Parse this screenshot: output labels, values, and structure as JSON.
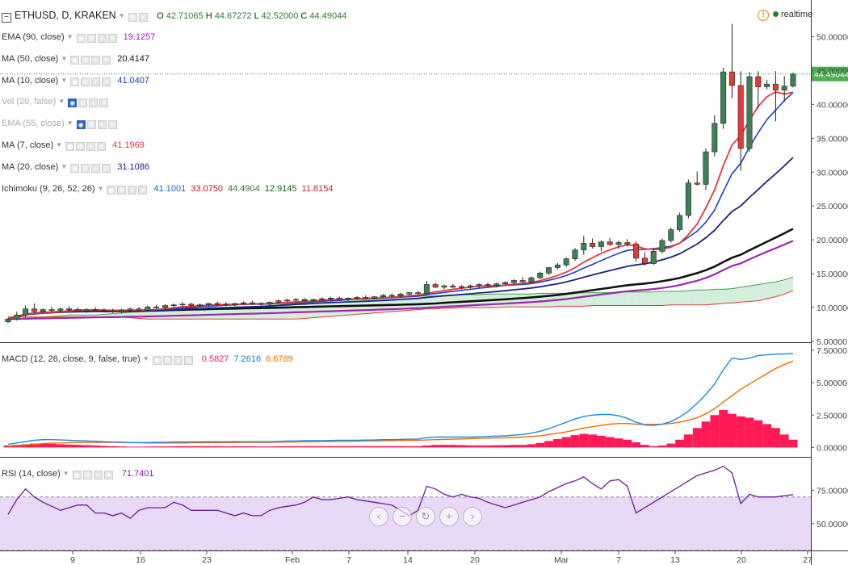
{
  "header": {
    "collapse_icon": "minus-square-icon",
    "symbol": "ETHUSD, D, KRAKEN",
    "ohlc": {
      "o_label": "O",
      "o": "42.71065",
      "h_label": "H",
      "h": "44.67272",
      "l_label": "L",
      "l": "42.52000",
      "c_label": "C",
      "c": "44.49044"
    },
    "realtime_label": "realtime",
    "colors": {
      "value": "#2e7d32",
      "warning": "#f57c00"
    }
  },
  "indicators": [
    {
      "label": "EMA (90, close)",
      "values": [
        "19.1257"
      ],
      "colors": [
        "#9c27b0"
      ],
      "faded": false
    },
    {
      "label": "MA (50, close)",
      "values": [
        "20.4147"
      ],
      "colors": [
        "#111111"
      ],
      "faded": false
    },
    {
      "label": "MA (10, close)",
      "values": [
        "41.0407"
      ],
      "colors": [
        "#1e3cc8"
      ],
      "faded": false
    },
    {
      "label": "Vol (20, false)",
      "values": [],
      "colors": [],
      "faded": true
    },
    {
      "label": "EMA (55, close)",
      "values": [],
      "colors": [],
      "faded": true
    },
    {
      "label": "MA (7, close)",
      "values": [
        "41.1969"
      ],
      "colors": [
        "#e53935"
      ],
      "faded": false
    },
    {
      "label": "MA (20, close)",
      "values": [
        "31.1086"
      ],
      "colors": [
        "#1a237e"
      ],
      "faded": false
    },
    {
      "label": "Ichimoku (9, 26, 52, 26)",
      "values": [
        "41.1001",
        "33.0750",
        "44.4904",
        "12.9145",
        "11.8154"
      ],
      "colors": [
        "#1565c0",
        "#b71c1c",
        "#2e7d32",
        "#1b5e20",
        "#c62828"
      ],
      "faded": false
    }
  ],
  "price_axis": {
    "ticks": [
      "50.00000",
      "45.00000",
      "40.00000",
      "35.00000",
      "30.00000",
      "25.00000",
      "20.00000",
      "15.00000",
      "10.00000",
      "5.00000"
    ],
    "last_price": "44.49044",
    "last_price_color": "#4caf50"
  },
  "macd": {
    "label": "MACD (12, 26, close, 9, false, true)",
    "values": [
      "0.5827",
      "7.2616",
      "6.6789"
    ],
    "colors": [
      "#e91e63",
      "#1976d2",
      "#ef6c00"
    ],
    "axis_ticks": [
      "7.50000",
      "5.00000",
      "2.50000",
      "0.00000"
    ]
  },
  "rsi": {
    "label": "RSI (14, close)",
    "value": "71.7401",
    "color": "#7b1fa2",
    "axis_ticks": [
      "75.00000",
      "50.00000"
    ]
  },
  "time_axis": {
    "labels": [
      "9",
      "16",
      "23",
      "Feb",
      "7",
      "14",
      "20",
      "Mar",
      "7",
      "13",
      "20",
      "27"
    ]
  },
  "navigation": [
    {
      "name": "scroll-left-button",
      "icon": "chevron-left-icon",
      "glyph": "‹"
    },
    {
      "name": "zoom-out-button",
      "icon": "minus-icon",
      "glyph": "−"
    },
    {
      "name": "reset-button",
      "icon": "reset-icon",
      "glyph": "↻"
    },
    {
      "name": "zoom-in-button",
      "icon": "plus-icon",
      "glyph": "+"
    },
    {
      "name": "scroll-right-button",
      "icon": "chevron-right-icon",
      "glyph": "›"
    }
  ],
  "chart_data": {
    "type": "candlestick",
    "price_candles": [
      [
        7.9,
        8.5,
        7.7,
        8.3
      ],
      [
        8.3,
        9.4,
        8.1,
        8.9
      ],
      [
        8.9,
        10.3,
        8.5,
        9.8
      ],
      [
        9.8,
        10.6,
        9.2,
        9.4
      ],
      [
        9.4,
        9.9,
        9.2,
        9.7
      ],
      [
        9.7,
        10.1,
        9.4,
        9.6
      ],
      [
        9.6,
        10.0,
        9.3,
        9.8
      ],
      [
        9.8,
        10.2,
        9.5,
        9.7
      ],
      [
        9.7,
        10.0,
        9.4,
        9.5
      ],
      [
        9.5,
        9.9,
        9.2,
        9.7
      ],
      [
        9.7,
        10.1,
        9.4,
        9.6
      ],
      [
        9.6,
        9.9,
        9.3,
        9.5
      ],
      [
        9.5,
        9.8,
        9.2,
        9.4
      ],
      [
        9.4,
        9.8,
        9.1,
        9.6
      ],
      [
        9.6,
        10.0,
        9.3,
        9.8
      ],
      [
        9.8,
        10.1,
        9.5,
        9.6
      ],
      [
        9.6,
        10.3,
        9.4,
        10.1
      ],
      [
        10.1,
        10.4,
        9.8,
        10.0
      ],
      [
        10.0,
        10.5,
        9.8,
        10.3
      ],
      [
        10.3,
        10.6,
        10.0,
        10.4
      ],
      [
        10.4,
        10.8,
        10.1,
        10.5
      ],
      [
        10.5,
        10.7,
        10.1,
        10.3
      ],
      [
        10.3,
        10.6,
        10.0,
        10.4
      ],
      [
        10.4,
        10.7,
        10.1,
        10.6
      ],
      [
        10.6,
        10.9,
        10.3,
        10.5
      ],
      [
        10.5,
        10.8,
        10.2,
        10.4
      ],
      [
        10.4,
        10.7,
        10.2,
        10.6
      ],
      [
        10.6,
        10.9,
        10.4,
        10.7
      ],
      [
        10.7,
        11.0,
        10.4,
        10.6
      ],
      [
        10.6,
        10.8,
        10.3,
        10.5
      ],
      [
        10.5,
        10.9,
        10.3,
        10.8
      ],
      [
        10.8,
        11.2,
        10.6,
        11.0
      ],
      [
        11.0,
        11.3,
        10.8,
        11.1
      ],
      [
        11.1,
        11.4,
        10.9,
        11.2
      ],
      [
        11.2,
        11.4,
        10.9,
        11.0
      ],
      [
        11.0,
        11.3,
        10.8,
        11.2
      ],
      [
        11.2,
        11.5,
        11.0,
        11.3
      ],
      [
        11.3,
        11.6,
        11.1,
        11.4
      ],
      [
        11.4,
        11.6,
        11.1,
        11.2
      ],
      [
        11.2,
        11.5,
        11.0,
        11.4
      ],
      [
        11.4,
        11.7,
        11.2,
        11.5
      ],
      [
        11.5,
        11.8,
        11.3,
        11.4
      ],
      [
        11.4,
        11.7,
        11.2,
        11.6
      ],
      [
        11.6,
        12.0,
        11.4,
        11.8
      ],
      [
        11.8,
        12.1,
        11.5,
        11.7
      ],
      [
        11.7,
        12.2,
        11.5,
        12.0
      ],
      [
        12.0,
        12.3,
        11.8,
        12.2
      ],
      [
        12.2,
        12.5,
        11.9,
        12.1
      ],
      [
        12.1,
        13.9,
        11.9,
        13.4
      ],
      [
        13.4,
        13.7,
        12.9,
        13.0
      ],
      [
        13.0,
        13.4,
        12.7,
        13.2
      ],
      [
        13.2,
        13.5,
        12.9,
        13.0
      ],
      [
        13.0,
        13.3,
        12.7,
        13.1
      ],
      [
        13.1,
        13.4,
        12.8,
        13.2
      ],
      [
        13.2,
        13.6,
        12.9,
        13.4
      ],
      [
        13.4,
        13.7,
        13.1,
        13.3
      ],
      [
        13.3,
        13.7,
        13.0,
        13.5
      ],
      [
        13.5,
        13.9,
        13.2,
        13.7
      ],
      [
        13.7,
        14.2,
        13.4,
        14.0
      ],
      [
        14.0,
        14.5,
        13.7,
        13.8
      ],
      [
        13.8,
        14.6,
        13.6,
        14.4
      ],
      [
        14.4,
        15.3,
        14.2,
        15.1
      ],
      [
        15.1,
        16.0,
        14.8,
        15.9
      ],
      [
        15.9,
        16.6,
        15.6,
        16.3
      ],
      [
        16.3,
        17.4,
        16.0,
        17.2
      ],
      [
        17.2,
        18.8,
        16.9,
        18.5
      ],
      [
        18.5,
        20.6,
        17.8,
        19.5
      ],
      [
        19.5,
        20.2,
        18.7,
        19.0
      ],
      [
        19.0,
        19.9,
        18.3,
        19.7
      ],
      [
        19.7,
        20.3,
        19.1,
        19.3
      ],
      [
        19.3,
        19.9,
        18.7,
        19.6
      ],
      [
        19.6,
        20.1,
        19.0,
        19.4
      ],
      [
        19.4,
        19.8,
        16.8,
        17.3
      ],
      [
        17.3,
        18.2,
        16.2,
        16.5
      ],
      [
        16.5,
        18.7,
        16.3,
        18.3
      ],
      [
        18.3,
        20.2,
        18.0,
        19.9
      ],
      [
        19.9,
        21.8,
        19.6,
        21.5
      ],
      [
        21.5,
        24.0,
        21.2,
        23.6
      ],
      [
        23.6,
        28.9,
        23.2,
        28.4
      ],
      [
        28.4,
        30.1,
        28.0,
        28.2
      ],
      [
        28.2,
        33.5,
        27.4,
        33.0
      ],
      [
        33.0,
        38.4,
        32.3,
        37.2
      ],
      [
        37.2,
        45.4,
        36.4,
        44.8
      ],
      [
        44.8,
        51.9,
        40.9,
        42.8
      ],
      [
        42.8,
        44.9,
        30.2,
        33.5
      ],
      [
        33.5,
        44.8,
        33.0,
        44.1
      ],
      [
        44.1,
        44.9,
        39.4,
        42.6
      ],
      [
        42.6,
        43.6,
        42.2,
        43.0
      ],
      [
        43.0,
        44.9,
        37.5,
        42.1
      ],
      [
        42.1,
        44.2,
        40.4,
        42.7
      ],
      [
        42.7,
        44.7,
        42.5,
        44.5
      ]
    ],
    "macd_histogram": [
      0.15,
      0.2,
      0.25,
      0.3,
      0.3,
      0.28,
      0.25,
      0.22,
      0.2,
      0.18,
      0.15,
      0.12,
      0.1,
      0.08,
      0.06,
      0.06,
      0.07,
      0.08,
      0.08,
      0.09,
      0.1,
      0.1,
      0.1,
      0.1,
      0.1,
      0.09,
      0.09,
      0.09,
      0.09,
      0.08,
      0.08,
      0.09,
      0.1,
      0.1,
      0.1,
      0.1,
      0.1,
      0.1,
      0.1,
      0.1,
      0.1,
      0.1,
      0.1,
      0.1,
      0.1,
      0.1,
      0.1,
      0.1,
      0.15,
      0.2,
      0.2,
      0.2,
      0.18,
      0.16,
      0.16,
      0.16,
      0.17,
      0.18,
      0.2,
      0.2,
      0.25,
      0.35,
      0.5,
      0.65,
      0.8,
      0.95,
      1.05,
      1.0,
      0.9,
      0.8,
      0.7,
      0.6,
      0.4,
      0.2,
      0.1,
      0.15,
      0.3,
      0.6,
      1.0,
      1.5,
      2.0,
      2.5,
      2.9,
      2.6,
      2.4,
      2.3,
      2.1,
      1.8,
      1.5,
      1.0,
      0.6
    ],
    "macd_line": [
      0.25,
      0.35,
      0.45,
      0.55,
      0.6,
      0.6,
      0.58,
      0.55,
      0.52,
      0.5,
      0.48,
      0.45,
      0.42,
      0.4,
      0.38,
      0.38,
      0.38,
      0.4,
      0.4,
      0.42,
      0.42,
      0.43,
      0.43,
      0.44,
      0.44,
      0.44,
      0.45,
      0.45,
      0.45,
      0.45,
      0.45,
      0.47,
      0.49,
      0.5,
      0.52,
      0.52,
      0.53,
      0.54,
      0.55,
      0.55,
      0.56,
      0.57,
      0.58,
      0.6,
      0.6,
      0.62,
      0.64,
      0.65,
      0.75,
      0.8,
      0.8,
      0.8,
      0.8,
      0.8,
      0.82,
      0.85,
      0.88,
      0.9,
      0.95,
      1.0,
      1.1,
      1.25,
      1.45,
      1.7,
      1.95,
      2.2,
      2.4,
      2.5,
      2.55,
      2.55,
      2.45,
      2.25,
      1.95,
      1.75,
      1.7,
      1.8,
      2.0,
      2.35,
      2.8,
      3.4,
      4.1,
      4.9,
      6.0,
      6.9,
      6.8,
      6.9,
      7.1,
      7.15,
      7.2,
      7.22,
      7.26
    ],
    "signal_line": [
      0.1,
      0.15,
      0.2,
      0.25,
      0.3,
      0.33,
      0.35,
      0.37,
      0.38,
      0.39,
      0.39,
      0.39,
      0.39,
      0.38,
      0.37,
      0.36,
      0.35,
      0.35,
      0.35,
      0.35,
      0.35,
      0.36,
      0.36,
      0.37,
      0.37,
      0.38,
      0.38,
      0.39,
      0.39,
      0.4,
      0.4,
      0.41,
      0.42,
      0.43,
      0.44,
      0.45,
      0.46,
      0.46,
      0.47,
      0.48,
      0.49,
      0.5,
      0.51,
      0.52,
      0.53,
      0.54,
      0.55,
      0.56,
      0.58,
      0.6,
      0.62,
      0.64,
      0.66,
      0.68,
      0.7,
      0.72,
      0.74,
      0.75,
      0.77,
      0.8,
      0.85,
      0.9,
      1.0,
      1.1,
      1.2,
      1.35,
      1.5,
      1.6,
      1.7,
      1.8,
      1.85,
      1.85,
      1.8,
      1.78,
      1.78,
      1.8,
      1.85,
      1.95,
      2.1,
      2.3,
      2.6,
      3.0,
      3.5,
      4.0,
      4.5,
      4.9,
      5.3,
      5.7,
      6.1,
      6.4,
      6.68
    ],
    "rsi_line": [
      57,
      68,
      76,
      70,
      66,
      63,
      60,
      62,
      64,
      64,
      58,
      58,
      56,
      58,
      54,
      60,
      62,
      62,
      62,
      66,
      64,
      60,
      60,
      60,
      60,
      58,
      56,
      58,
      56,
      56,
      60,
      62,
      63,
      64,
      66,
      70,
      68,
      68,
      69,
      70,
      68,
      67,
      66,
      65,
      64,
      60,
      56,
      60,
      78,
      76,
      72,
      70,
      72,
      70,
      69,
      66,
      64,
      62,
      64,
      66,
      68,
      70,
      74,
      77,
      80,
      82,
      85,
      80,
      76,
      82,
      83,
      78,
      58,
      62,
      66,
      70,
      74,
      78,
      82,
      86,
      88,
      90,
      93,
      88,
      65,
      72,
      70,
      70,
      70,
      71,
      71.74
    ],
    "ichimoku_cloud": {
      "span_a": [
        8.3,
        8.3,
        8.4,
        8.5,
        8.6,
        8.7,
        8.8,
        8.9,
        8.9,
        8.9,
        8.9,
        9.0,
        9.1,
        9.2,
        9.3,
        9.4,
        9.5,
        9.6,
        9.6,
        9.7,
        9.7,
        9.8,
        9.8,
        9.9,
        9.9,
        10.0,
        10.0,
        10.1,
        10.1,
        10.2,
        10.3,
        10.4,
        10.5,
        10.6,
        10.7,
        10.8,
        10.9,
        11.0,
        11.1,
        11.2,
        11.3,
        11.4,
        11.4,
        11.5,
        11.5,
        11.6,
        11.6,
        11.7,
        11.7,
        11.7,
        11.8,
        11.8,
        11.9,
        11.9,
        11.9,
        12.0,
        12.0,
        12.0,
        12.0,
        12.0,
        12.0,
        12.1,
        12.1,
        12.1,
        12.1,
        12.1,
        12.2,
        12.2,
        12.2,
        12.2,
        12.3,
        12.3,
        12.3,
        12.3,
        12.3,
        12.4,
        12.4,
        12.4,
        12.5,
        12.6,
        12.6,
        12.7,
        12.7,
        12.8,
        13.0,
        13.2,
        13.4,
        13.6,
        13.8,
        14.1,
        14.5
      ],
      "span_b": [
        8.6,
        8.6,
        8.6,
        8.6,
        8.6,
        8.6,
        8.6,
        8.6,
        8.6,
        8.6,
        8.6,
        8.6,
        8.6,
        8.6,
        8.5,
        8.4,
        8.3,
        8.3,
        8.3,
        8.3,
        8.3,
        8.3,
        8.3,
        8.3,
        8.3,
        8.3,
        8.3,
        8.3,
        8.3,
        8.3,
        8.3,
        8.3,
        8.3,
        8.3,
        8.4,
        8.5,
        8.6,
        8.7,
        8.8,
        8.9,
        9.0,
        9.1,
        9.2,
        9.3,
        9.4,
        9.5,
        9.6,
        9.7,
        9.8,
        9.8,
        9.9,
        9.9,
        10.0,
        10.0,
        10.0,
        10.0,
        10.0,
        10.1,
        10.1,
        10.1,
        10.1,
        10.1,
        10.1,
        10.2,
        10.2,
        10.2,
        10.2,
        10.3,
        10.3,
        10.3,
        10.3,
        10.3,
        10.3,
        10.3,
        10.3,
        10.3,
        10.4,
        10.4,
        10.4,
        10.4,
        10.4,
        10.5,
        10.6,
        10.7,
        10.8,
        10.9,
        11.0,
        11.3,
        11.6,
        12.0,
        12.5
      ]
    },
    "series_colors": {
      "up_candle": "#3e8157",
      "down_candle": "#e53935",
      "ma7": "#e53935",
      "ma10": "#1e3cc8",
      "ma20": "#1a237e",
      "ma50": "#111111",
      "ema90": "#9c27b0"
    },
    "price_ylim": [
      5,
      55
    ],
    "macd_ylim": [
      -0.6,
      8
    ],
    "rsi_ylim": [
      30,
      100
    ],
    "rsi_bands": [
      70,
      30
    ]
  }
}
